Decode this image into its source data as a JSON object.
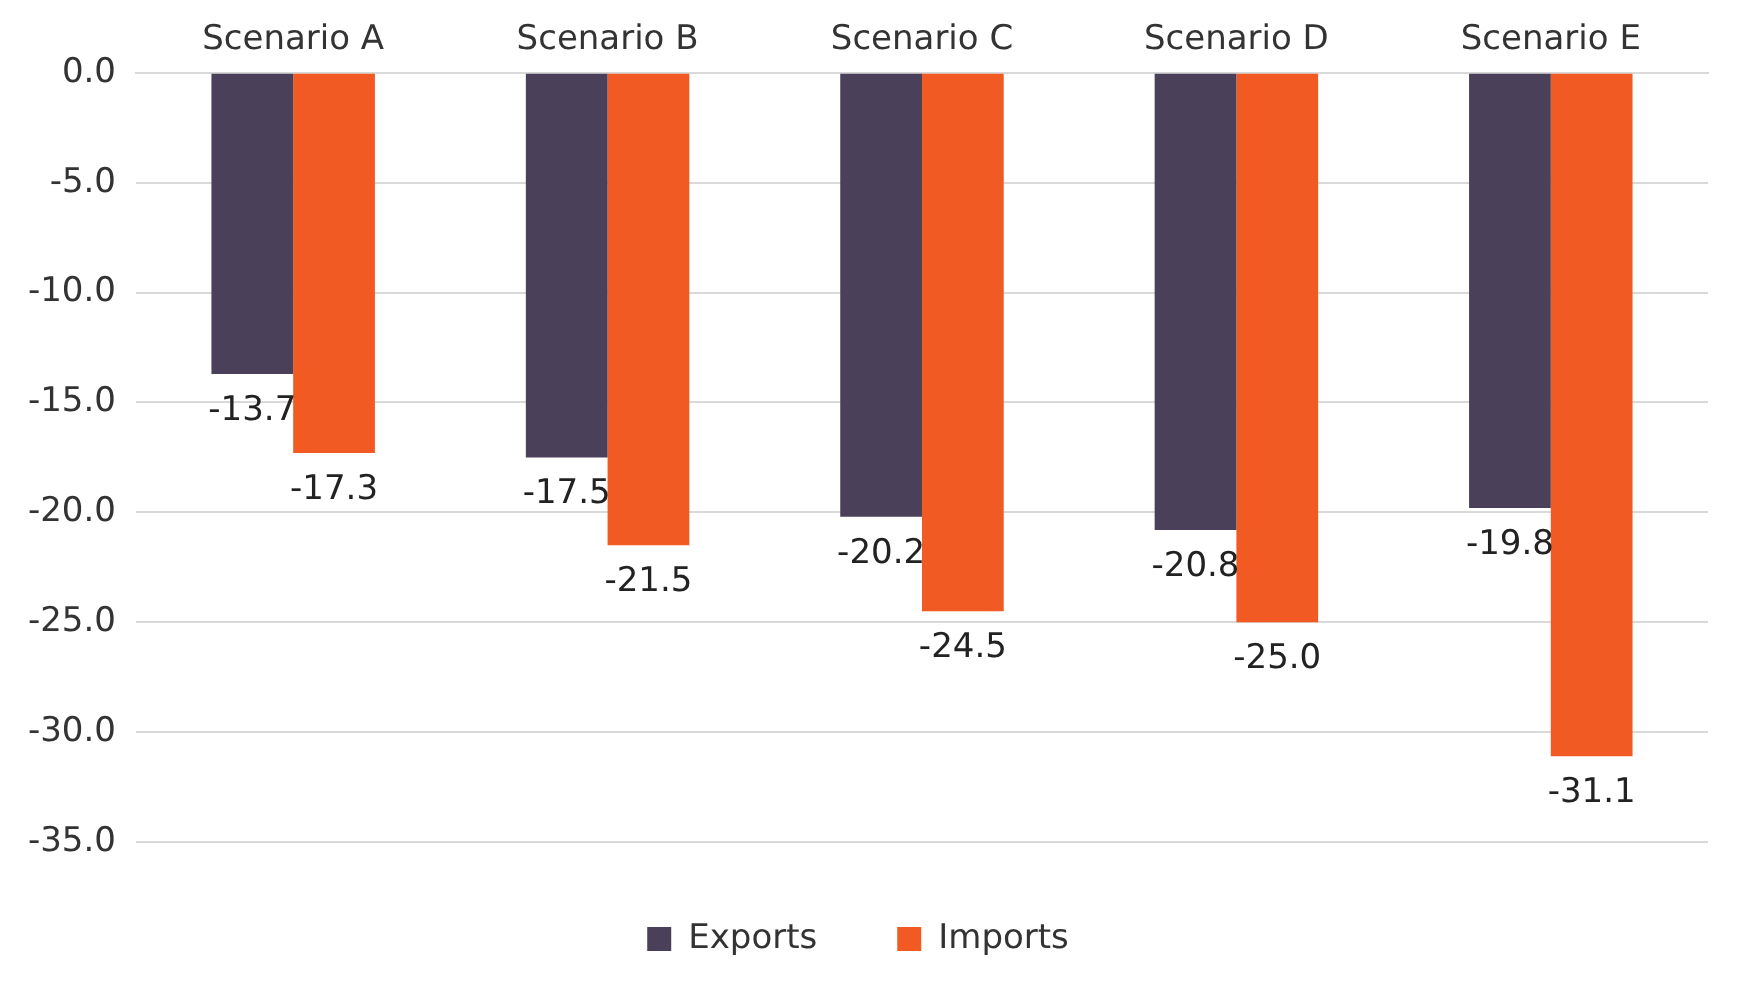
{
  "chart_data": {
    "type": "bar",
    "categories": [
      "Scenario A",
      "Scenario B",
      "Scenario C",
      "Scenario D",
      "Scenario E"
    ],
    "series": [
      {
        "name": "Exports",
        "color": "#4a4059",
        "values": [
          -13.7,
          -17.5,
          -20.2,
          -20.8,
          -19.8
        ],
        "value_labels": [
          "-13.7",
          "-17.5",
          "-20.2",
          "-20.8",
          "-19.8"
        ]
      },
      {
        "name": "Imports",
        "color": "#f15a22",
        "values": [
          -17.3,
          -21.5,
          -24.5,
          -25.0,
          -31.1
        ],
        "value_labels": [
          "-17.3",
          "-21.5",
          "-24.5",
          "-25.0",
          "-31.1"
        ]
      }
    ],
    "ylim": [
      -35,
      0
    ],
    "yticks": [
      {
        "value": 0,
        "label": "0.0"
      },
      {
        "value": -5,
        "label": "-5.0"
      },
      {
        "value": -10,
        "label": "-10.0"
      },
      {
        "value": -15,
        "label": "-15.0"
      },
      {
        "value": -20,
        "label": "-20.0"
      },
      {
        "value": -25,
        "label": "-25.0"
      },
      {
        "value": -30,
        "label": "-30.0"
      },
      {
        "value": -35,
        "label": "-35.0"
      }
    ],
    "grid": "y",
    "legend": "bottom"
  }
}
